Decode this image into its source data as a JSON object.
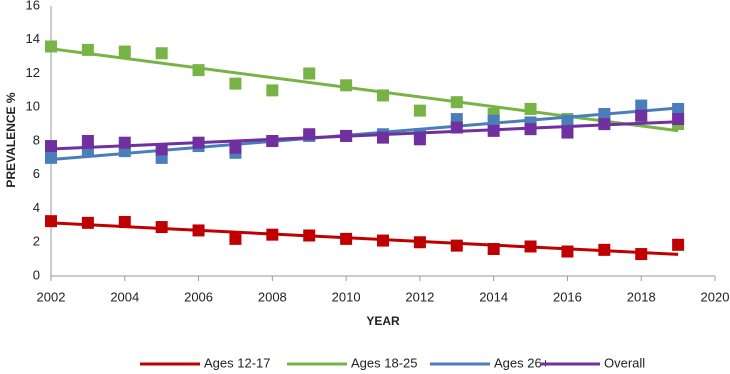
{
  "chart_data": {
    "type": "scatter",
    "marker": "square",
    "trendline": true,
    "x_label": "YEAR",
    "y_label": "PREVALENCE %",
    "x": [
      2002,
      2003,
      2004,
      2005,
      2006,
      2007,
      2008,
      2009,
      2010,
      2011,
      2012,
      2013,
      2014,
      2015,
      2016,
      2017,
      2018,
      2019
    ],
    "series": [
      {
        "name": "Ages 12-17",
        "color": "#c00000",
        "values": [
          3.25,
          3.15,
          3.2,
          2.9,
          2.7,
          2.2,
          2.45,
          2.4,
          2.2,
          2.1,
          2.0,
          1.8,
          1.6,
          1.75,
          1.45,
          1.55,
          1.3,
          1.85
        ]
      },
      {
        "name": "Ages 18-25",
        "color": "#77b345",
        "values": [
          13.6,
          13.4,
          13.3,
          13.2,
          12.2,
          11.4,
          11.0,
          12.0,
          11.3,
          10.7,
          9.8,
          10.3,
          9.6,
          9.9,
          9.3,
          9.2,
          9.5,
          9.0
        ]
      },
      {
        "name": "Ages 26+",
        "color": "#4a7ebb",
        "values": [
          7.0,
          7.5,
          7.4,
          7.0,
          7.7,
          7.3,
          8.0,
          8.3,
          8.3,
          8.4,
          8.4,
          9.3,
          9.2,
          9.1,
          9.2,
          9.6,
          10.1,
          9.9
        ]
      },
      {
        "name": "Overall",
        "color": "#7030a0",
        "values": [
          7.7,
          8.0,
          7.9,
          7.5,
          7.9,
          7.6,
          8.0,
          8.4,
          8.3,
          8.2,
          8.1,
          8.8,
          8.6,
          8.7,
          8.5,
          9.0,
          9.5,
          9.3
        ]
      }
    ],
    "xlim": [
      2002,
      2020
    ],
    "xticks": [
      2002,
      2004,
      2006,
      2008,
      2010,
      2012,
      2014,
      2016,
      2018,
      2020
    ],
    "ylim": [
      0,
      16
    ],
    "yticks": [
      0,
      2,
      4,
      6,
      8,
      10,
      12,
      14,
      16
    ],
    "grid": false,
    "legend": "bottom"
  }
}
